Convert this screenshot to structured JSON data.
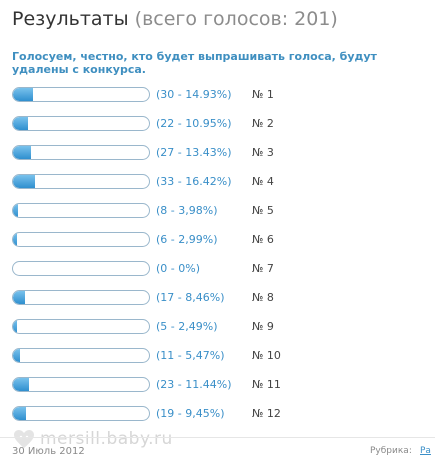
{
  "header": {
    "title_main": "Результаты",
    "title_meta": "(всего голосов: 201)"
  },
  "question": "Голосуем, честно, кто будет выпрашивать голоса, будут удалены с конкурса.",
  "poll": {
    "bar_color": "#3a9ad9",
    "rows": [
      {
        "votes": 30,
        "percent": 14.93,
        "result_text": "(30 - 14.93%)",
        "option": "№ 1"
      },
      {
        "votes": 22,
        "percent": 10.95,
        "result_text": "(22 - 10.95%)",
        "option": "№ 2"
      },
      {
        "votes": 27,
        "percent": 13.43,
        "result_text": "(27 - 13.43%)",
        "option": "№ 3"
      },
      {
        "votes": 33,
        "percent": 16.42,
        "result_text": "(33 - 16.42%)",
        "option": "№ 4"
      },
      {
        "votes": 8,
        "percent": 3.98,
        "result_text": "(8 - 3,98%)",
        "option": "№ 5"
      },
      {
        "votes": 6,
        "percent": 2.99,
        "result_text": "(6 - 2,99%)",
        "option": "№ 6"
      },
      {
        "votes": 0,
        "percent": 0,
        "result_text": "(0 - 0%)",
        "option": "№ 7"
      },
      {
        "votes": 17,
        "percent": 8.46,
        "result_text": "(17 - 8,46%)",
        "option": "№ 8"
      },
      {
        "votes": 5,
        "percent": 2.49,
        "result_text": "(5 - 2,49%)",
        "option": "№ 9"
      },
      {
        "votes": 11,
        "percent": 5.47,
        "result_text": "(11 - 5,47%)",
        "option": "№ 10"
      },
      {
        "votes": 23,
        "percent": 11.44,
        "result_text": "(23 - 11.44%)",
        "option": "№ 11"
      },
      {
        "votes": 19,
        "percent": 9.45,
        "result_text": "(19 - 9,45%)",
        "option": "№ 12"
      }
    ]
  },
  "footer": {
    "date": "30 Июль 2012",
    "rubric_label": "Рубрика:",
    "rubric_link": "Ра"
  },
  "watermark": {
    "text": "mersill.baby.ru"
  }
}
